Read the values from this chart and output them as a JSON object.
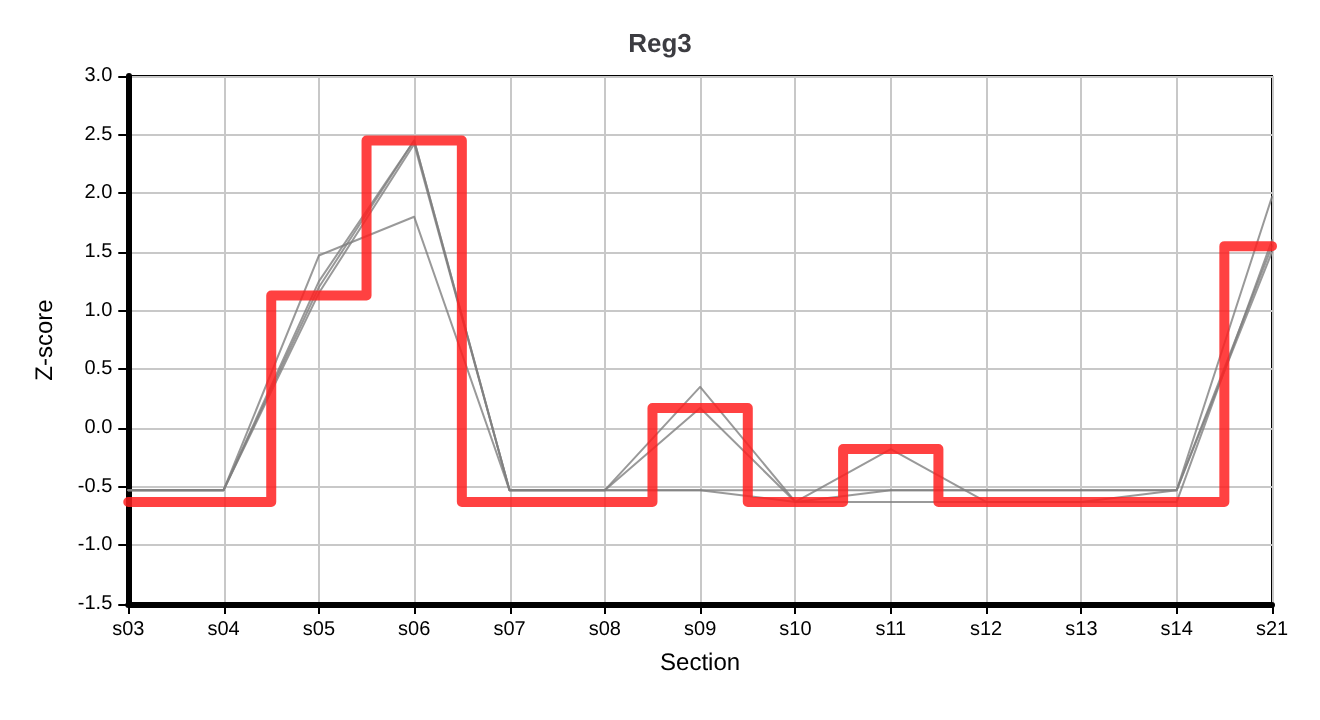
{
  "chart_data": {
    "type": "line",
    "title": "Reg3",
    "xlabel": "Section",
    "ylabel": "Z-score",
    "categories": [
      "s03",
      "s04",
      "s05",
      "s06",
      "s07",
      "s08",
      "s09",
      "s10",
      "s11",
      "s12",
      "s13",
      "s14",
      "s21"
    ],
    "ylim": [
      -1.5,
      3
    ],
    "yticks": [
      {
        "value": -1.5,
        "label": "-1.5"
      },
      {
        "value": -1,
        "label": "-1.0"
      },
      -0.5,
      {
        "value": 0,
        "label": "0.0"
      },
      0.5,
      {
        "value": 1,
        "label": "1.0"
      },
      1.5,
      {
        "value": 2,
        "label": "2.0"
      },
      2.5,
      {
        "value": 3,
        "label": "3.0"
      }
    ],
    "grid": true,
    "marker": "none",
    "line_style": "solid",
    "series": [
      {
        "color": "#808080",
        "values": [
          -0.53,
          -0.53,
          1.47,
          1.8,
          -0.53,
          -0.53,
          0.35,
          -0.63,
          -0.53,
          -0.53,
          -0.53,
          -0.53,
          1.97
        ]
      },
      {
        "color": "#808080",
        "values": [
          -0.53,
          -0.53,
          1.2,
          2.45,
          -0.53,
          -0.53,
          0.17,
          -0.63,
          -0.18,
          -0.63,
          -0.63,
          -0.63,
          1.6
        ]
      },
      {
        "color": "#808080",
        "values": [
          -0.53,
          -0.53,
          1.15,
          2.42,
          -0.53,
          -0.53,
          -0.53,
          -0.53,
          -0.53,
          -0.53,
          -0.53,
          -0.53,
          1.55
        ]
      },
      {
        "color": "#808080",
        "values": [
          -0.53,
          -0.53,
          1.25,
          2.45,
          -0.53,
          -0.53,
          -0.53,
          -0.63,
          -0.63,
          -0.63,
          -0.63,
          -0.53,
          1.5
        ]
      },
      {
        "type": "step",
        "color": "#ff2020",
        "values": [
          -0.63,
          -0.63,
          1.13,
          2.45,
          -0.63,
          -0.63,
          0.17,
          -0.63,
          -0.18,
          -0.63,
          -0.63,
          -0.63,
          1.55
        ]
      }
    ]
  }
}
